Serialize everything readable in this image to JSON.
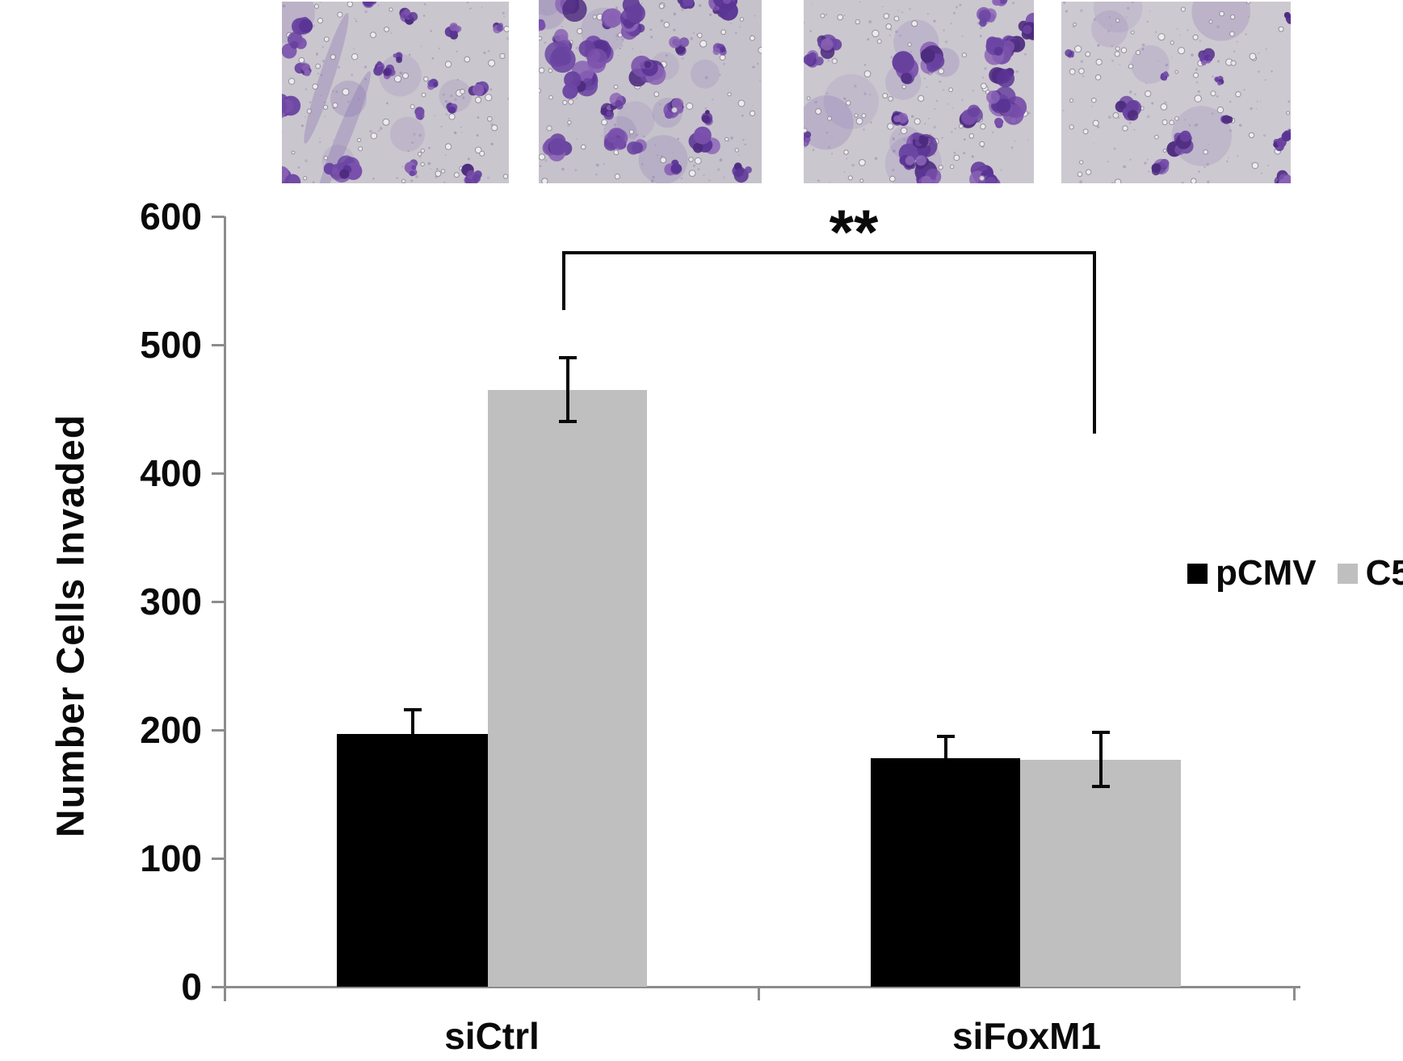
{
  "figure": {
    "panels": [
      {
        "id": "micrograph-1",
        "density": "medium",
        "seed": 7,
        "blobs": 20,
        "diffuse": 6,
        "pores": 50,
        "cluster_scale": 1.0,
        "streak": true,
        "bg": "#cac6ce"
      },
      {
        "id": "micrograph-2",
        "density": "dense",
        "seed": 13,
        "blobs": 30,
        "diffuse": 9,
        "pores": 45,
        "cluster_scale": 1.25,
        "streak": false,
        "bg": "#c6c2cb"
      },
      {
        "id": "micrograph-3",
        "density": "dense",
        "seed": 21,
        "blobs": 24,
        "diffuse": 7,
        "pores": 50,
        "cluster_scale": 1.15,
        "streak": false,
        "bg": "#cbc7cf"
      },
      {
        "id": "micrograph-4",
        "density": "sparse",
        "seed": 29,
        "blobs": 14,
        "diffuse": 5,
        "pores": 55,
        "cluster_scale": 0.9,
        "streak": false,
        "bg": "#cdc9d1"
      }
    ]
  },
  "chart_data": {
    "type": "bar",
    "categories": [
      "siCtrl",
      "siFoxM1"
    ],
    "series": [
      {
        "name": "pCMV",
        "color": "#000000",
        "values": [
          197,
          178
        ],
        "errors": [
          19,
          17
        ],
        "error_style": "upper"
      },
      {
        "name": "C5",
        "color": "#bfbfbf",
        "values": [
          465,
          177
        ],
        "errors": [
          25,
          21
        ],
        "error_style": "both"
      }
    ],
    "title": "",
    "xlabel": "",
    "ylabel": "Number Cells Invaded",
    "ylim": [
      0,
      600
    ],
    "yticks": [
      0,
      100,
      200,
      300,
      400,
      500,
      600
    ],
    "grid": "off",
    "legend_position": "right",
    "significance": {
      "label": "**",
      "between": [
        "siCtrl C5",
        "siFoxM1 C5"
      ]
    }
  }
}
